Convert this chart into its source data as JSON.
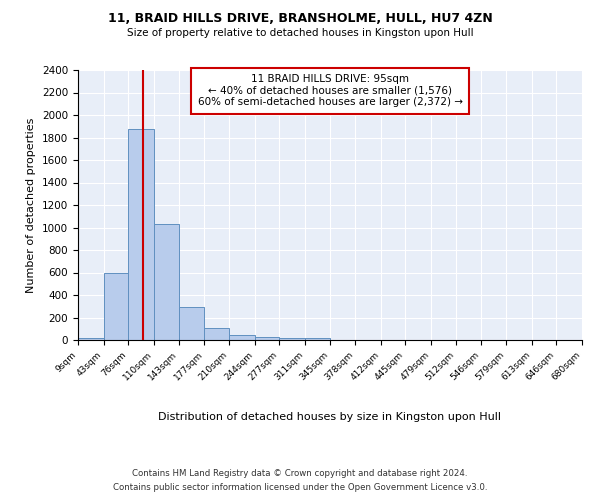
{
  "title1": "11, BRAID HILLS DRIVE, BRANSHOLME, HULL, HU7 4ZN",
  "title2": "Size of property relative to detached houses in Kingston upon Hull",
  "xlabel": "Distribution of detached houses by size in Kingston upon Hull",
  "ylabel": "Number of detached properties",
  "footnote1": "Contains HM Land Registry data © Crown copyright and database right 2024.",
  "footnote2": "Contains public sector information licensed under the Open Government Licence v3.0.",
  "annotation_line1": "11 BRAID HILLS DRIVE: 95sqm",
  "annotation_line2": "← 40% of detached houses are smaller (1,576)",
  "annotation_line3": "60% of semi-detached houses are larger (2,372) →",
  "bin_edges": [
    9,
    43,
    76,
    110,
    143,
    177,
    210,
    244,
    277,
    311,
    345,
    378,
    412,
    445,
    479,
    512,
    546,
    579,
    613,
    646,
    680
  ],
  "bar_heights": [
    20,
    600,
    1880,
    1030,
    290,
    110,
    45,
    25,
    20,
    20,
    0,
    0,
    0,
    0,
    0,
    0,
    0,
    0,
    0,
    0
  ],
  "bar_color": "#b8ccec",
  "bar_edge_color": "#6090c0",
  "vline_color": "#cc0000",
  "vline_x": 95,
  "ylim": [
    0,
    2400
  ],
  "yticks": [
    0,
    200,
    400,
    600,
    800,
    1000,
    1200,
    1400,
    1600,
    1800,
    2000,
    2200,
    2400
  ],
  "bg_color": "#e8eef8",
  "annotation_box_color": "#ffffff",
  "annotation_box_edge": "#cc0000"
}
